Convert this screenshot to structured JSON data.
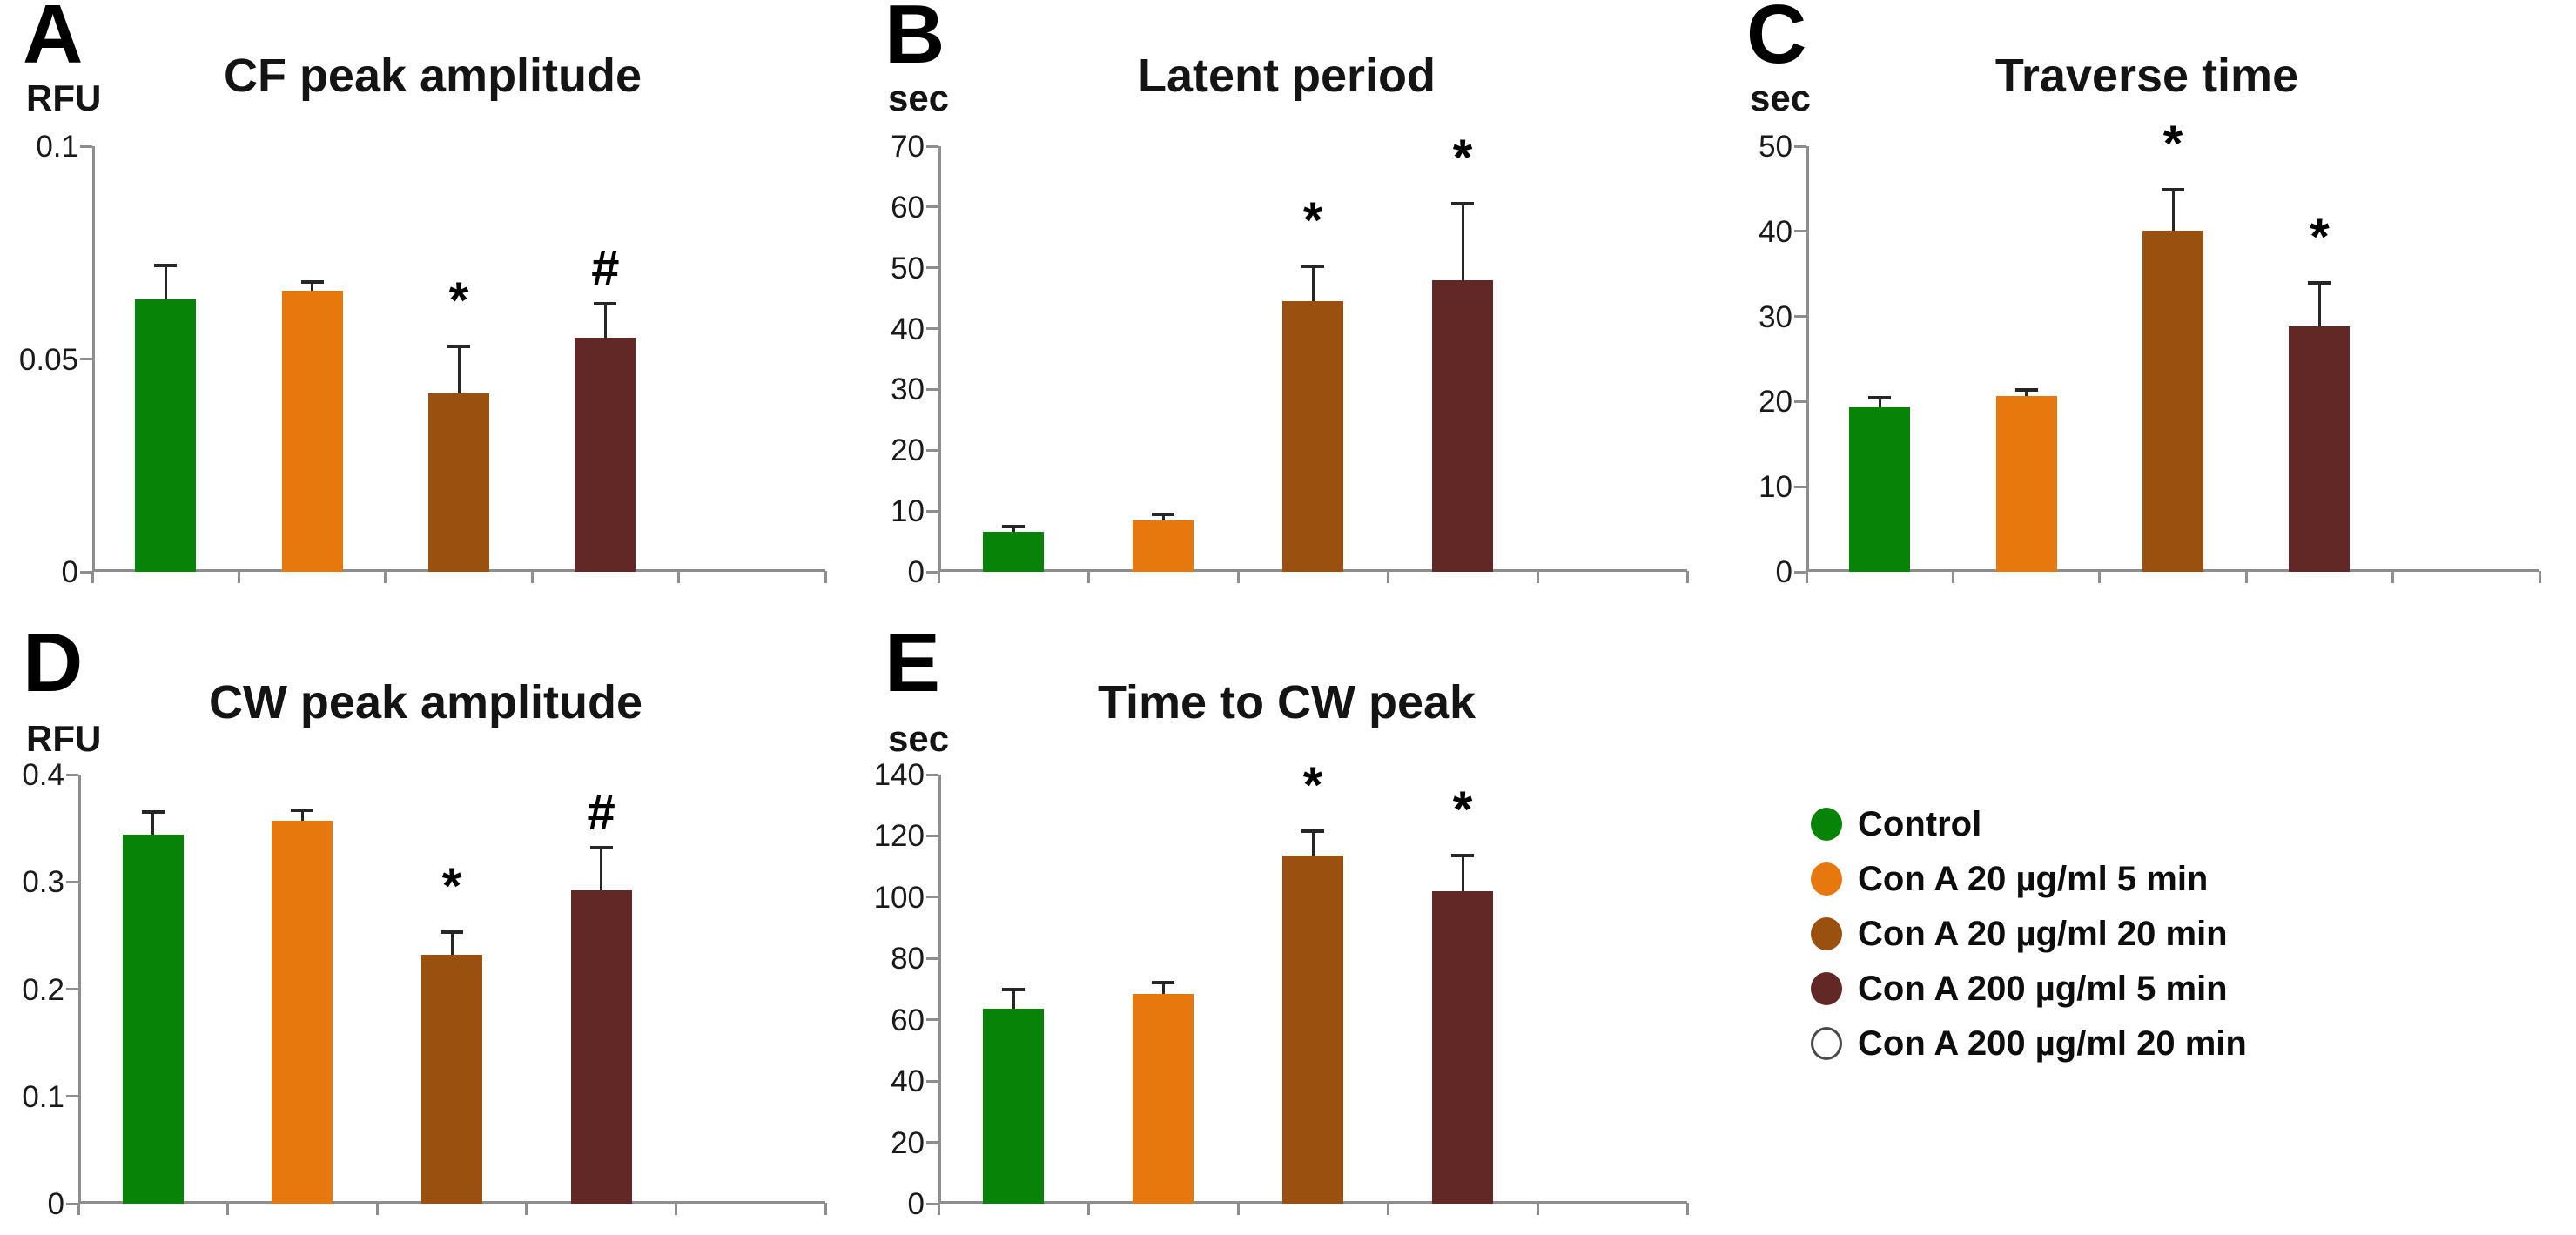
{
  "figure": {
    "background": "#ffffff",
    "description": "Five-panel bar figure (A-E) of Con A treatment effects with shared legend"
  },
  "colors": {
    "series": [
      "#078407",
      "#E6780E",
      "#9A5110",
      "#612826",
      "#FFFFFF"
    ],
    "axis": "#8e8e8e",
    "error_bar": "#262626",
    "text": "#141414"
  },
  "legend": {
    "items": [
      {
        "label": "Control",
        "color": "#078407",
        "outlined": false
      },
      {
        "label": "Con A 20 µg/ml 5 min",
        "color": "#E6780E",
        "outlined": false
      },
      {
        "label": "Con A 20 µg/ml 20 min",
        "color": "#9A5110",
        "outlined": false
      },
      {
        "label": "Con A 200 µg/ml 5 min",
        "color": "#612826",
        "outlined": false
      },
      {
        "label": "Con A 200 µg/ml 20 min",
        "color": "#FFFFFF",
        "outlined": true
      }
    ]
  },
  "chart_data": [
    {
      "type": "bar",
      "panel_label": "A",
      "title": "CF peak amplitude",
      "ylabel": "RFU",
      "ylim": [
        0,
        0.1
      ],
      "yticks": [
        0,
        0.05,
        0.1
      ],
      "ytick_labels": [
        "0",
        "0.05",
        "0.1"
      ],
      "categories": [
        "Control",
        "Con A 20 µg/ml 5 min",
        "Con A 20 µg/ml 20 min",
        "Con A 200 µg/ml 5 min",
        "Con A 200 µg/ml 20 min"
      ],
      "values": [
        0.064,
        0.066,
        0.042,
        0.055,
        null
      ],
      "errors": [
        0.008,
        0.002,
        0.011,
        0.008,
        null
      ],
      "annotations": [
        null,
        null,
        "*",
        "#",
        null
      ],
      "grid": false,
      "legend_position": "none"
    },
    {
      "type": "bar",
      "panel_label": "B",
      "title": "Latent period",
      "ylabel": "sec",
      "ylim": [
        0,
        70
      ],
      "yticks": [
        0,
        10,
        20,
        30,
        40,
        50,
        60,
        70
      ],
      "ytick_labels": [
        "0",
        "10",
        "20",
        "30",
        "40",
        "50",
        "60",
        "70"
      ],
      "categories": [
        "Control",
        "Con A 20 µg/ml 5 min",
        "Con A 20 µg/ml 20 min",
        "Con A 200 µg/ml 5 min",
        "Con A 200 µg/ml 20 min"
      ],
      "values": [
        6.6,
        8.4,
        44.5,
        48,
        null
      ],
      "errors": [
        0.9,
        1.0,
        5.8,
        12.5,
        null
      ],
      "annotations": [
        null,
        null,
        "*",
        "*",
        null
      ],
      "grid": false,
      "legend_position": "none"
    },
    {
      "type": "bar",
      "panel_label": "C",
      "title": "Traverse time",
      "ylabel": "sec",
      "ylim": [
        0,
        50
      ],
      "yticks": [
        0,
        10,
        20,
        30,
        40,
        50
      ],
      "ytick_labels": [
        "0",
        "10",
        "20",
        "30",
        "40",
        "50"
      ],
      "categories": [
        "Control",
        "Con A 20 µg/ml 5 min",
        "Con A 20 µg/ml 20 min",
        "Con A 200 µg/ml 5 min",
        "Con A 200 µg/ml 20 min"
      ],
      "values": [
        19.3,
        20.7,
        40.1,
        28.8,
        null
      ],
      "errors": [
        1.2,
        0.7,
        4.8,
        5.1,
        null
      ],
      "annotations": [
        null,
        null,
        "*",
        "*",
        null
      ],
      "grid": false,
      "legend_position": "none"
    },
    {
      "type": "bar",
      "panel_label": "D",
      "title": "CW peak amplitude",
      "ylabel": "RFU",
      "ylim": [
        0,
        0.4
      ],
      "yticks": [
        0,
        0.1,
        0.2,
        0.3,
        0.4
      ],
      "ytick_labels": [
        "0",
        "0.1",
        "0.2",
        "0.3",
        "0.4"
      ],
      "categories": [
        "Control",
        "Con A 20 µg/ml 5 min",
        "Con A 20 µg/ml 20 min",
        "Con A 200 µg/ml 5 min",
        "Con A 200 µg/ml 20 min"
      ],
      "values": [
        0.344,
        0.357,
        0.232,
        0.292,
        null
      ],
      "errors": [
        0.021,
        0.01,
        0.021,
        0.04,
        null
      ],
      "annotations": [
        null,
        null,
        "*",
        "#",
        null
      ],
      "grid": false,
      "legend_position": "none"
    },
    {
      "type": "bar",
      "panel_label": "E",
      "title": "Time to CW peak",
      "ylabel": "sec",
      "ylim": [
        0,
        140
      ],
      "yticks": [
        0,
        20,
        40,
        60,
        80,
        100,
        120,
        140
      ],
      "ytick_labels": [
        "0",
        "20",
        "40",
        "60",
        "80",
        "100",
        "120",
        "140"
      ],
      "categories": [
        "Control",
        "Con A 20 µg/ml 5 min",
        "Con A 20 µg/ml 20 min",
        "Con A 200 µg/ml 5 min",
        "Con A 200 µg/ml 20 min"
      ],
      "values": [
        63.5,
        68.5,
        113.5,
        102,
        null
      ],
      "errors": [
        6.5,
        3.5,
        8.0,
        11.5,
        null
      ],
      "annotations": [
        null,
        null,
        "*",
        "*",
        null
      ],
      "grid": false,
      "legend_position": "none"
    }
  ]
}
